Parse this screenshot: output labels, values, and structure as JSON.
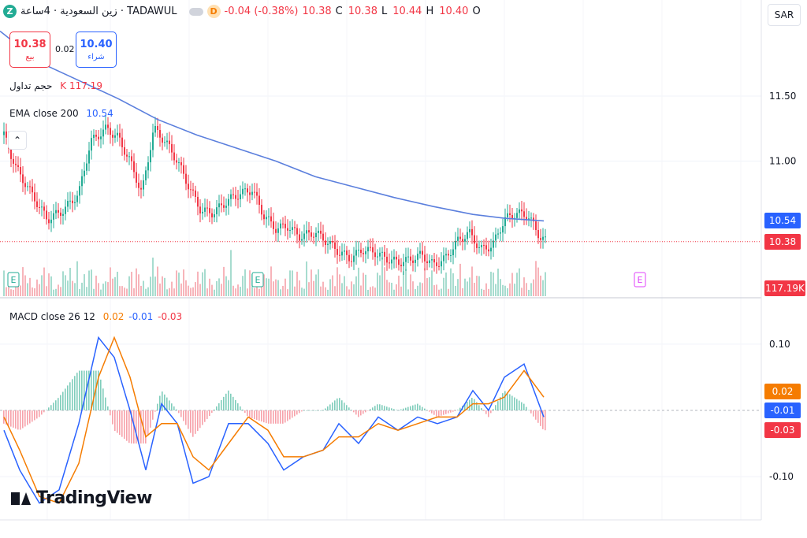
{
  "header": {
    "logo_letter": "Z",
    "symbol": "زين السعودية · 4ساعة · TADAWUL",
    "delay_badge": "D",
    "change": "-0.04 (-0.38%)",
    "c_val": "10.38",
    "c_lbl": "C",
    "l_val": "10.38",
    "l_lbl": "L",
    "h_val": "10.44",
    "h_lbl": "H",
    "o_val": "10.40",
    "o_lbl": "O"
  },
  "currency": "SAR",
  "trade": {
    "sell_price": "10.38",
    "sell_label": "بيع",
    "spread": "0.02",
    "buy_price": "10.40",
    "buy_label": "شراء"
  },
  "volume_legend": {
    "label": "حجم تداول",
    "value": "K 117.19"
  },
  "ema_legend": {
    "label": "EMA close 200",
    "value": "10.54"
  },
  "macd_legend": {
    "label": "MACD close 26 12",
    "v1": "0.02",
    "v2": "-0.01",
    "v3": "-0.03"
  },
  "price_tags": {
    "ema": "10.54",
    "last": "10.38",
    "volume": "117.19K"
  },
  "macd_tags": {
    "signal": "0.02",
    "macd": "-0.01",
    "hist": "-0.03"
  },
  "brand": "TradingView",
  "colors": {
    "up": "#22ab94",
    "down": "#f23645",
    "ema": "#5b7fdd",
    "macd": "#2962ff",
    "signal": "#f57c00",
    "earnings": "#22ab94",
    "earnings_future": "#e040fb"
  },
  "chart_data": [
    {
      "type": "line",
      "title": "",
      "series": [
        {
          "name": "EMA close 200",
          "x": [
            0,
            50,
            100,
            150,
            200,
            250,
            300,
            350,
            400,
            450,
            500,
            550,
            600,
            640,
            690
          ],
          "values": [
            12.0,
            11.76,
            11.62,
            11.48,
            11.32,
            11.2,
            11.1,
            11.0,
            10.88,
            10.8,
            10.72,
            10.65,
            10.59,
            10.56,
            10.54
          ]
        },
        {
          "name": "close",
          "x": [
            5,
            20,
            40,
            60,
            80,
            100,
            115,
            135,
            150,
            165,
            180,
            195,
            210,
            225,
            240,
            255,
            270,
            290,
            305,
            320,
            335,
            350,
            365,
            380,
            400,
            415,
            430,
            445,
            460,
            475,
            490,
            505,
            520,
            535,
            550,
            565,
            580,
            595,
            610,
            625,
            640,
            655,
            670,
            685,
            693
          ],
          "values": [
            11.2,
            10.95,
            10.75,
            10.55,
            10.62,
            10.75,
            11.15,
            11.25,
            11.18,
            11.0,
            10.75,
            11.25,
            11.15,
            11.0,
            10.8,
            10.62,
            10.6,
            10.7,
            10.75,
            10.78,
            10.58,
            10.48,
            10.5,
            10.42,
            10.45,
            10.38,
            10.3,
            10.25,
            10.32,
            10.3,
            10.25,
            10.22,
            10.24,
            10.28,
            10.2,
            10.25,
            10.38,
            10.45,
            10.32,
            10.35,
            10.55,
            10.6,
            10.58,
            10.42,
            10.38
          ]
        }
      ],
      "y_ticks": [
        "11.50",
        "11.00"
      ],
      "earnings_markers": [
        "E",
        "E",
        "E"
      ]
    },
    {
      "type": "line",
      "title": "",
      "series": [
        {
          "name": "MACD",
          "x": [
            5,
            25,
            50,
            75,
            100,
            125,
            145,
            165,
            185,
            205,
            225,
            245,
            265,
            290,
            315,
            340,
            360,
            385,
            410,
            430,
            455,
            480,
            505,
            530,
            555,
            580,
            600,
            620,
            640,
            665,
            690
          ],
          "values": [
            -0.03,
            -0.09,
            -0.14,
            -0.12,
            -0.02,
            0.11,
            0.08,
            0.0,
            -0.09,
            0.01,
            -0.02,
            -0.11,
            -0.1,
            -0.02,
            -0.02,
            -0.05,
            -0.09,
            -0.07,
            -0.06,
            -0.02,
            -0.05,
            -0.01,
            -0.03,
            -0.01,
            -0.02,
            -0.01,
            0.03,
            0.0,
            0.05,
            0.07,
            -0.01
          ]
        },
        {
          "name": "Signal",
          "x": [
            5,
            25,
            50,
            75,
            100,
            125,
            145,
            165,
            185,
            205,
            225,
            245,
            265,
            290,
            315,
            340,
            360,
            385,
            410,
            430,
            455,
            480,
            505,
            530,
            555,
            580,
            600,
            620,
            640,
            665,
            690
          ],
          "values": [
            -0.01,
            -0.06,
            -0.13,
            -0.14,
            -0.08,
            0.05,
            0.11,
            0.05,
            -0.04,
            -0.02,
            -0.02,
            -0.07,
            -0.09,
            -0.05,
            -0.01,
            -0.03,
            -0.07,
            -0.07,
            -0.06,
            -0.04,
            -0.04,
            -0.02,
            -0.03,
            -0.02,
            -0.01,
            -0.01,
            0.01,
            0.01,
            0.02,
            0.06,
            0.02
          ]
        }
      ],
      "y_ticks": [
        "0.10",
        "-0.10"
      ]
    }
  ]
}
